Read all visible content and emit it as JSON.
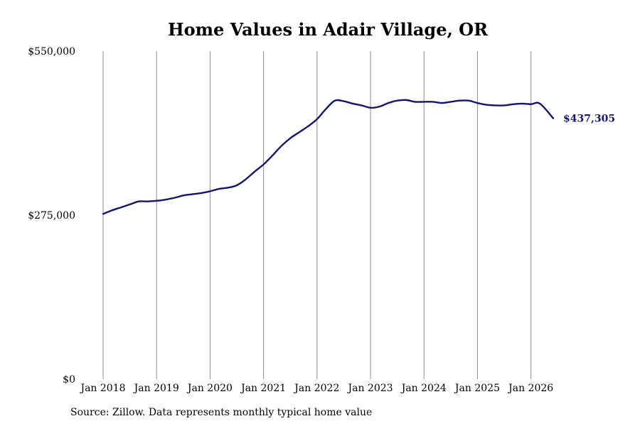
{
  "chart_data": {
    "type": "line",
    "title": "Home Values in Adair Village, OR",
    "xlabel": "",
    "ylabel": "",
    "ylim": [
      0,
      550000
    ],
    "ytick_labels": [
      "$0",
      "$275,000",
      "$550,000"
    ],
    "ytick_values": [
      0,
      275000,
      550000
    ],
    "xtick_labels": [
      "Jan 2018",
      "Jan 2019",
      "Jan 2020",
      "Jan 2021",
      "Jan 2022",
      "Jan 2023",
      "Jan 2024",
      "Jan 2025",
      "Jan 2026"
    ],
    "xtick_values": [
      "2018-01",
      "2019-01",
      "2020-01",
      "2021-01",
      "2022-01",
      "2023-01",
      "2024-01",
      "2025-01",
      "2026-01"
    ],
    "xlim": [
      "2018-01",
      "2026-06"
    ],
    "grid": "vertical",
    "line_color": "#14146b",
    "end_label": "$437,305",
    "series": [
      {
        "x": [
          "2018-01",
          "2018-03",
          "2018-05",
          "2018-07",
          "2018-09",
          "2018-11",
          "2019-01",
          "2019-03",
          "2019-05",
          "2019-07",
          "2019-09",
          "2019-11",
          "2020-01",
          "2020-03",
          "2020-05",
          "2020-07",
          "2020-09",
          "2020-11",
          "2021-01",
          "2021-03",
          "2021-05",
          "2021-07",
          "2021-09",
          "2021-11",
          "2022-01",
          "2022-03",
          "2022-05",
          "2022-07",
          "2022-09",
          "2022-11",
          "2023-01",
          "2023-03",
          "2023-05",
          "2023-07",
          "2023-09",
          "2023-11",
          "2024-01",
          "2024-03",
          "2024-05",
          "2024-07",
          "2024-09",
          "2024-11",
          "2025-01",
          "2025-03",
          "2025-05",
          "2025-07",
          "2025-09",
          "2025-11",
          "2026-01",
          "2026-03",
          "2026-06"
        ],
        "values": [
          277000,
          283000,
          288000,
          293000,
          298000,
          298000,
          299000,
          301000,
          304000,
          308000,
          310000,
          312000,
          315000,
          319000,
          321000,
          325000,
          335000,
          348000,
          360000,
          375000,
          391000,
          404000,
          414000,
          424000,
          436000,
          453000,
          467000,
          466000,
          462000,
          459000,
          455000,
          457000,
          463000,
          467000,
          468000,
          465000,
          465000,
          465000,
          463000,
          465000,
          467000,
          467000,
          463000,
          460000,
          459000,
          459000,
          461000,
          462000,
          461000,
          462000,
          437305
        ]
      }
    ]
  },
  "source": "Source: Zillow. Data represents monthly typical home value"
}
